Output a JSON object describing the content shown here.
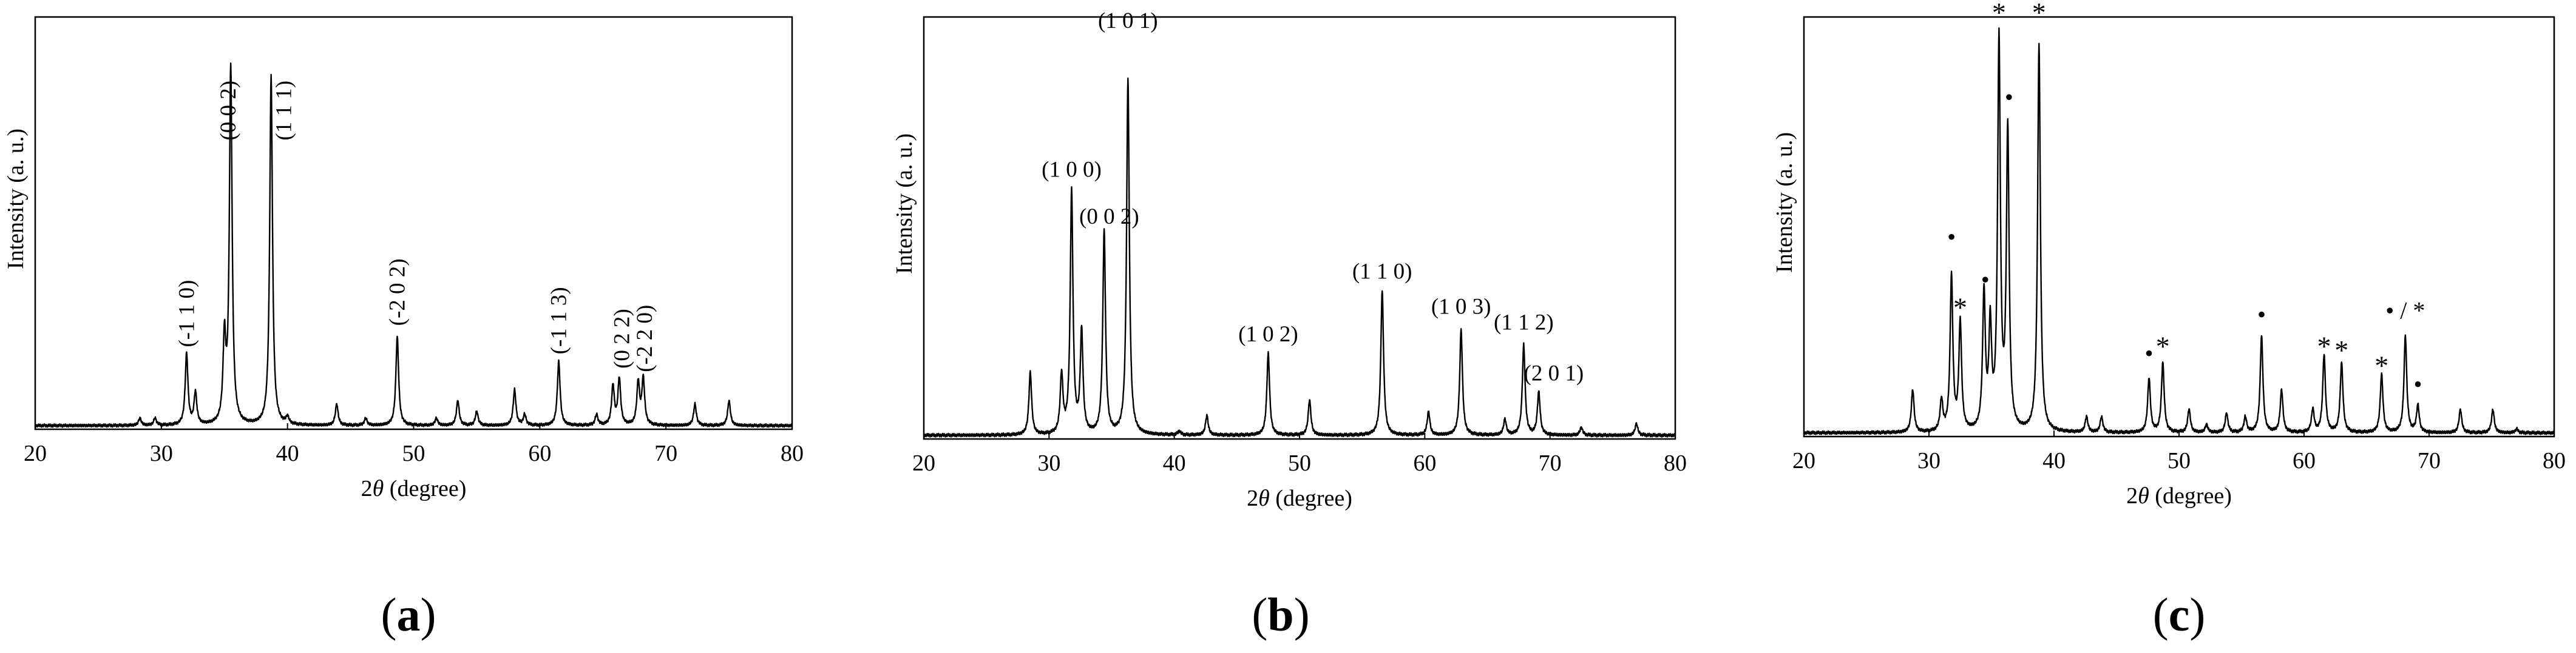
{
  "chart_data": [
    {
      "type": "line",
      "panel_label": "(a)",
      "xlabel": "2θ (degree)",
      "ylabel": "Intensity (a. u.)",
      "xlim": [
        20,
        80
      ],
      "ylim": [
        0,
        100
      ],
      "x_ticks": [
        20,
        30,
        40,
        50,
        60,
        70,
        80
      ],
      "grid": false,
      "series": [
        {
          "peaks": [
            {
              "x": 28.3,
              "h": 2
            },
            {
              "x": 29.5,
              "h": 2
            },
            {
              "x": 32.0,
              "h": 20
            },
            {
              "x": 32.7,
              "h": 9
            },
            {
              "x": 35.0,
              "h": 23
            },
            {
              "x": 35.5,
              "h": 100
            },
            {
              "x": 38.7,
              "h": 98
            },
            {
              "x": 40.0,
              "h": 2
            },
            {
              "x": 43.9,
              "h": 6
            },
            {
              "x": 46.2,
              "h": 2
            },
            {
              "x": 48.7,
              "h": 25
            },
            {
              "x": 51.8,
              "h": 2
            },
            {
              "x": 53.5,
              "h": 7
            },
            {
              "x": 55.0,
              "h": 4
            },
            {
              "x": 58.0,
              "h": 10
            },
            {
              "x": 58.8,
              "h": 3
            },
            {
              "x": 61.5,
              "h": 18
            },
            {
              "x": 64.5,
              "h": 3
            },
            {
              "x": 65.8,
              "h": 11
            },
            {
              "x": 66.3,
              "h": 13
            },
            {
              "x": 67.8,
              "h": 12
            },
            {
              "x": 68.2,
              "h": 13
            },
            {
              "x": 72.3,
              "h": 6
            },
            {
              "x": 75.0,
              "h": 7
            }
          ]
        }
      ],
      "annotations": [
        {
          "text": "(-1 1 0)",
          "x": 32.0,
          "y": 22
        },
        {
          "text": "(0 0 2)",
          "x": 35.3,
          "y": 80
        },
        {
          "text": "(1 1 1)",
          "x": 39.7,
          "y": 80
        },
        {
          "text": "(-2 0 2)",
          "x": 48.7,
          "y": 28
        },
        {
          "text": "(-1 1 3)",
          "x": 61.5,
          "y": 20
        },
        {
          "text": "(0 2 2)",
          "x": 66.5,
          "y": 16
        },
        {
          "text": "(-2 2 0)",
          "x": 68.3,
          "y": 15
        }
      ]
    },
    {
      "type": "line",
      "panel_label": "(b)",
      "xlabel": "2θ (degree)",
      "ylabel": "Intensity (a. u.)",
      "xlim": [
        20,
        80
      ],
      "ylim": [
        0,
        100
      ],
      "x_ticks": [
        20,
        30,
        40,
        50,
        60,
        70,
        80
      ],
      "grid": false,
      "series": [
        {
          "peaks": [
            {
              "x": 28.5,
              "h": 16
            },
            {
              "x": 31.0,
              "h": 15
            },
            {
              "x": 31.8,
              "h": 62
            },
            {
              "x": 32.6,
              "h": 26
            },
            {
              "x": 34.4,
              "h": 52
            },
            {
              "x": 36.3,
              "h": 91
            },
            {
              "x": 40.4,
              "h": 1
            },
            {
              "x": 42.6,
              "h": 5
            },
            {
              "x": 47.5,
              "h": 21
            },
            {
              "x": 50.8,
              "h": 9
            },
            {
              "x": 56.6,
              "h": 37
            },
            {
              "x": 60.3,
              "h": 6
            },
            {
              "x": 62.9,
              "h": 27
            },
            {
              "x": 66.4,
              "h": 4
            },
            {
              "x": 67.9,
              "h": 23
            },
            {
              "x": 69.1,
              "h": 11
            },
            {
              "x": 72.5,
              "h": 2
            },
            {
              "x": 76.9,
              "h": 3
            }
          ]
        }
      ],
      "annotations": [
        {
          "text": "(1 0 0)",
          "x": 31.8,
          "y": 66
        },
        {
          "text": "(0 0 2)",
          "x": 34.8,
          "y": 54
        },
        {
          "text": "(1 0 1)",
          "x": 36.3,
          "y": 104
        },
        {
          "text": "(1 0 2)",
          "x": 47.5,
          "y": 24
        },
        {
          "text": "(1 1 0)",
          "x": 56.6,
          "y": 40
        },
        {
          "text": "(1 0 3)",
          "x": 62.9,
          "y": 31
        },
        {
          "text": "(1 1 2)",
          "x": 67.9,
          "y": 27
        },
        {
          "text": "(2 0 1)",
          "x": 70.3,
          "y": 14
        }
      ]
    },
    {
      "type": "line",
      "panel_label": "(c)",
      "xlabel": "2θ (degree)",
      "ylabel": "Intensity (a. u.)",
      "xlim": [
        20,
        80
      ],
      "ylim": [
        0,
        100
      ],
      "x_ticks": [
        20,
        30,
        40,
        50,
        60,
        70,
        80
      ],
      "grid": false,
      "series": [
        {
          "peaks": [
            {
              "x": 28.7,
              "h": 11
            },
            {
              "x": 31.0,
              "h": 8
            },
            {
              "x": 31.8,
              "h": 40
            },
            {
              "x": 32.5,
              "h": 28
            },
            {
              "x": 34.4,
              "h": 35
            },
            {
              "x": 34.9,
              "h": 26
            },
            {
              "x": 35.6,
              "h": 100
            },
            {
              "x": 36.3,
              "h": 77
            },
            {
              "x": 38.8,
              "h": 100
            },
            {
              "x": 42.6,
              "h": 4
            },
            {
              "x": 43.8,
              "h": 4
            },
            {
              "x": 47.6,
              "h": 14
            },
            {
              "x": 48.7,
              "h": 18
            },
            {
              "x": 50.8,
              "h": 6
            },
            {
              "x": 52.2,
              "h": 2
            },
            {
              "x": 53.8,
              "h": 5
            },
            {
              "x": 55.3,
              "h": 4
            },
            {
              "x": 56.6,
              "h": 25
            },
            {
              "x": 58.2,
              "h": 11
            },
            {
              "x": 60.7,
              "h": 6
            },
            {
              "x": 61.6,
              "h": 20
            },
            {
              "x": 63.0,
              "h": 18
            },
            {
              "x": 66.2,
              "h": 15
            },
            {
              "x": 68.1,
              "h": 25
            },
            {
              "x": 69.1,
              "h": 7
            },
            {
              "x": 72.5,
              "h": 6
            },
            {
              "x": 75.1,
              "h": 6
            },
            {
              "x": 77.0,
              "h": 1
            }
          ]
        }
      ],
      "annotations": [
        {
          "text": "•",
          "x": 31.8,
          "y": 50
        },
        {
          "text": "*",
          "x": 32.5,
          "y": 34
        },
        {
          "text": "•",
          "x": 34.5,
          "y": 39
        },
        {
          "text": "*",
          "x": 35.6,
          "y": 110
        },
        {
          "text": "•",
          "x": 36.4,
          "y": 86
        },
        {
          "text": "*",
          "x": 38.8,
          "y": 110
        },
        {
          "text": "•",
          "x": 47.6,
          "y": 20
        },
        {
          "text": "*",
          "x": 48.7,
          "y": 24
        },
        {
          "text": "•",
          "x": 56.6,
          "y": 30
        },
        {
          "text": "*",
          "x": 61.6,
          "y": 24
        },
        {
          "text": "*",
          "x": 63.0,
          "y": 23
        },
        {
          "text": "*",
          "x": 66.2,
          "y": 19
        },
        {
          "text": "• / *",
          "x": 68.1,
          "y": 31
        },
        {
          "text": "•",
          "x": 69.1,
          "y": 12
        }
      ]
    }
  ]
}
